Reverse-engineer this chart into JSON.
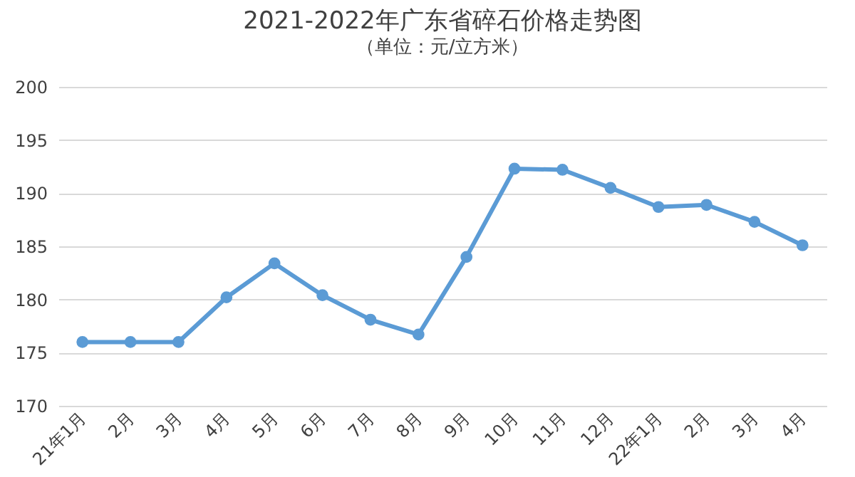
{
  "chart_data": {
    "type": "line",
    "title": "2021-2022年广东省碎石价格走势图",
    "subtitle": "（单位：元/立方米）",
    "categories": [
      "21年1月",
      "2月",
      "3月",
      "4月",
      "5月",
      "6月",
      "7月",
      "8月",
      "9月",
      "10月",
      "11月",
      "12月",
      "22年1月",
      "2月",
      "3月",
      "4月"
    ],
    "series": [
      {
        "color": "#5b9bd5",
        "values": [
          176,
          176,
          176,
          180.2,
          183.4,
          180.4,
          178.1,
          176.7,
          184,
          192.3,
          192.2,
          190.5,
          188.7,
          188.9,
          187.3,
          185.1
        ]
      }
    ],
    "ylim": [
      170,
      200
    ],
    "yticks": [
      170,
      175,
      180,
      185,
      190,
      195,
      200
    ],
    "grid": "y",
    "marker": "circle",
    "line_style": "solid"
  }
}
